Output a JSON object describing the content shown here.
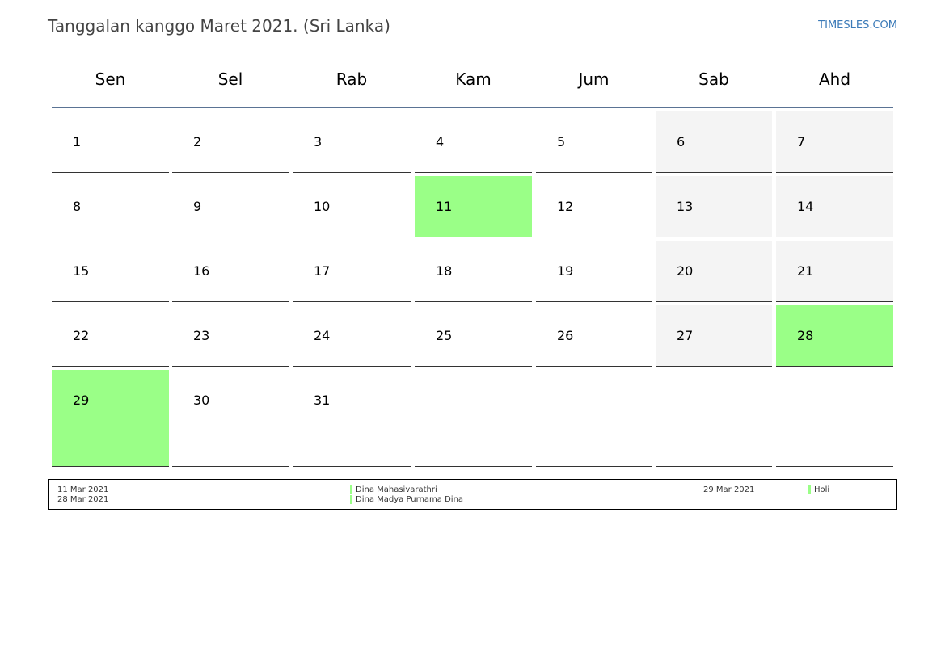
{
  "header": {
    "title": "Tanggalan kanggo Maret 2021. (Sri Lanka)",
    "site": "TIMESLES.COM"
  },
  "colors": {
    "holiday": "#9aff87",
    "weekend": "#f4f4f4",
    "header_rule": "#5a7394",
    "link": "#3b7ab8"
  },
  "weekdays": [
    "Sen",
    "Sel",
    "Rab",
    "Kam",
    "Jum",
    "Sab",
    "Ahd"
  ],
  "weeks": [
    [
      {
        "d": "1"
      },
      {
        "d": "2"
      },
      {
        "d": "3"
      },
      {
        "d": "4"
      },
      {
        "d": "5"
      },
      {
        "d": "6",
        "weekend": true
      },
      {
        "d": "7",
        "weekend": true
      }
    ],
    [
      {
        "d": "8"
      },
      {
        "d": "9"
      },
      {
        "d": "10"
      },
      {
        "d": "11",
        "holiday": true
      },
      {
        "d": "12"
      },
      {
        "d": "13",
        "weekend": true
      },
      {
        "d": "14",
        "weekend": true
      }
    ],
    [
      {
        "d": "15"
      },
      {
        "d": "16"
      },
      {
        "d": "17"
      },
      {
        "d": "18"
      },
      {
        "d": "19"
      },
      {
        "d": "20",
        "weekend": true
      },
      {
        "d": "21",
        "weekend": true
      }
    ],
    [
      {
        "d": "22"
      },
      {
        "d": "23"
      },
      {
        "d": "24"
      },
      {
        "d": "25"
      },
      {
        "d": "26"
      },
      {
        "d": "27",
        "weekend": true
      },
      {
        "d": "28",
        "holiday": true
      }
    ],
    [
      {
        "d": "29",
        "holiday": true
      },
      {
        "d": "30"
      },
      {
        "d": "31"
      },
      {
        "d": ""
      },
      {
        "d": ""
      },
      {
        "d": ""
      },
      {
        "d": ""
      }
    ]
  ],
  "holidays": [
    {
      "date": "11 Mar 2021",
      "name": "Dina Mahasivarathri"
    },
    {
      "date": "28 Mar 2021",
      "name": "Dina Madya Purnama Dina"
    },
    {
      "date": "29 Mar 2021",
      "name": "Holi"
    }
  ]
}
